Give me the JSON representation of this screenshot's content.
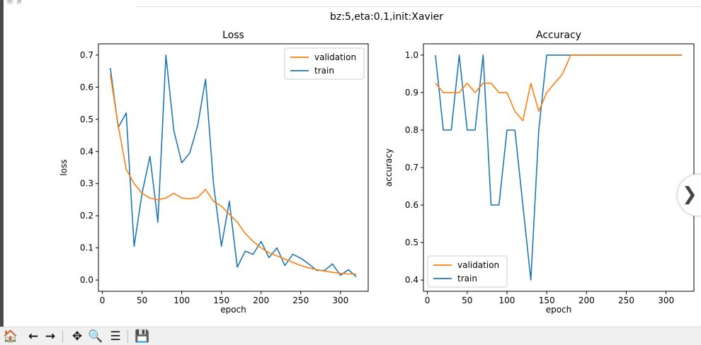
{
  "figure": {
    "suptitle": "bz:5,eta:0.1,init:Xavier"
  },
  "colors": {
    "train": "#1f77b4",
    "validation": "#ff7f0e"
  },
  "toolbar": {
    "buttons": [
      {
        "name": "home-icon",
        "glyph": "🏠"
      },
      {
        "name": "back-icon",
        "glyph": "←"
      },
      {
        "name": "forward-icon",
        "glyph": "→"
      },
      {
        "name": "pan-icon",
        "glyph": "✥"
      },
      {
        "name": "zoom-icon",
        "glyph": "🔍"
      },
      {
        "name": "subplots-config-icon",
        "glyph": "☰"
      },
      {
        "name": "save-icon",
        "glyph": "💾"
      }
    ]
  },
  "nav": {
    "glyph": "❯"
  },
  "chart_data": [
    {
      "type": "line",
      "title": "Loss",
      "xlabel": "epoch",
      "ylabel": "loss",
      "xlim": [
        -5,
        335
      ],
      "ylim": [
        -0.035,
        0.735
      ],
      "xticks": [
        0,
        50,
        100,
        150,
        200,
        250,
        300
      ],
      "yticks": [
        0.0,
        0.1,
        0.2,
        0.3,
        0.4,
        0.5,
        0.6,
        0.7
      ],
      "ytick_labels": [
        "0.0",
        "0.1",
        "0.2",
        "0.3",
        "0.4",
        "0.5",
        "0.6",
        "0.7"
      ],
      "legend": "upper right",
      "grid": false,
      "x": [
        10,
        20,
        30,
        40,
        50,
        60,
        70,
        80,
        90,
        100,
        110,
        120,
        130,
        140,
        150,
        160,
        170,
        180,
        190,
        200,
        210,
        220,
        230,
        240,
        250,
        260,
        270,
        280,
        290,
        300,
        310,
        320
      ],
      "series": [
        {
          "name": "validation",
          "color": "#ff7f0e",
          "values": [
            0.64,
            0.48,
            0.345,
            0.3,
            0.27,
            0.255,
            0.25,
            0.255,
            0.27,
            0.255,
            0.253,
            0.257,
            0.282,
            0.245,
            0.23,
            0.205,
            0.18,
            0.145,
            0.12,
            0.1,
            0.085,
            0.075,
            0.065,
            0.055,
            0.045,
            0.038,
            0.032,
            0.028,
            0.024,
            0.021,
            0.019,
            0.018
          ]
        },
        {
          "name": "train",
          "color": "#1f77b4",
          "values": [
            0.66,
            0.475,
            0.52,
            0.105,
            0.27,
            0.385,
            0.18,
            0.7,
            0.465,
            0.365,
            0.395,
            0.48,
            0.625,
            0.3,
            0.105,
            0.245,
            0.04,
            0.09,
            0.08,
            0.12,
            0.07,
            0.1,
            0.045,
            0.08,
            0.068,
            0.05,
            0.03,
            0.03,
            0.05,
            0.015,
            0.032,
            0.01
          ]
        }
      ]
    },
    {
      "type": "line",
      "title": "Accuracy",
      "xlabel": "epoch",
      "ylabel": "accuracy",
      "xlim": [
        -5,
        335
      ],
      "ylim": [
        0.37,
        1.03
      ],
      "xticks": [
        0,
        50,
        100,
        150,
        200,
        250,
        300
      ],
      "yticks": [
        0.4,
        0.5,
        0.6,
        0.7,
        0.8,
        0.9,
        1.0
      ],
      "ytick_labels": [
        "0.4",
        "0.5",
        "0.6",
        "0.7",
        "0.8",
        "0.9",
        "1.0"
      ],
      "legend": "lower left",
      "grid": false,
      "x": [
        10,
        20,
        30,
        40,
        50,
        60,
        70,
        80,
        90,
        100,
        110,
        120,
        130,
        140,
        150,
        160,
        170,
        180,
        190,
        200,
        210,
        220,
        230,
        240,
        250,
        260,
        270,
        280,
        290,
        300,
        310,
        320
      ],
      "series": [
        {
          "name": "validation",
          "color": "#ff7f0e",
          "values": [
            0.925,
            0.9,
            0.9,
            0.9,
            0.925,
            0.9,
            0.925,
            0.925,
            0.9,
            0.9,
            0.85,
            0.825,
            0.925,
            0.85,
            0.9,
            0.925,
            0.95,
            1.0,
            1.0,
            1.0,
            1.0,
            1.0,
            1.0,
            1.0,
            1.0,
            1.0,
            1.0,
            1.0,
            1.0,
            1.0,
            1.0,
            1.0
          ]
        },
        {
          "name": "train",
          "color": "#1f77b4",
          "values": [
            1.0,
            0.8,
            0.8,
            1.0,
            0.8,
            0.8,
            1.0,
            0.6,
            0.6,
            0.8,
            0.8,
            0.6,
            0.4,
            0.8,
            1.0,
            1.0,
            1.0,
            1.0,
            1.0,
            1.0,
            1.0,
            1.0,
            1.0,
            1.0,
            1.0,
            1.0,
            1.0,
            1.0,
            1.0,
            1.0,
            1.0,
            1.0
          ]
        }
      ]
    }
  ]
}
